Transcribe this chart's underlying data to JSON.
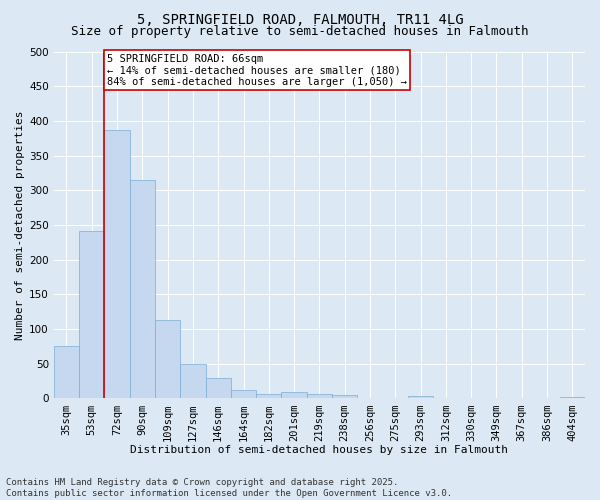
{
  "title_line1": "5, SPRINGFIELD ROAD, FALMOUTH, TR11 4LG",
  "title_line2": "Size of property relative to semi-detached houses in Falmouth",
  "xlabel": "Distribution of semi-detached houses by size in Falmouth",
  "ylabel": "Number of semi-detached properties",
  "categories": [
    "35sqm",
    "53sqm",
    "72sqm",
    "90sqm",
    "109sqm",
    "127sqm",
    "146sqm",
    "164sqm",
    "182sqm",
    "201sqm",
    "219sqm",
    "238sqm",
    "256sqm",
    "275sqm",
    "293sqm",
    "312sqm",
    "330sqm",
    "349sqm",
    "367sqm",
    "386sqm",
    "404sqm"
  ],
  "values": [
    75,
    242,
    387,
    315,
    113,
    50,
    29,
    12,
    7,
    10,
    6,
    5,
    0,
    0,
    3,
    0,
    0,
    1,
    0,
    0,
    2
  ],
  "bar_color": "#c5d8f0",
  "bar_edge_color": "#7aadd4",
  "vline_x_index": 1.5,
  "vline_color": "#cc0000",
  "annotation_box_text": "5 SPRINGFIELD ROAD: 66sqm\n← 14% of semi-detached houses are smaller (180)\n84% of semi-detached houses are larger (1,050) →",
  "annotation_box_color": "#cc0000",
  "annotation_box_fill": "#ffffff",
  "ylim": [
    0,
    500
  ],
  "yticks": [
    0,
    50,
    100,
    150,
    200,
    250,
    300,
    350,
    400,
    450,
    500
  ],
  "background_color": "#dce9f5",
  "plot_background_color": "#dce9f5",
  "footnote": "Contains HM Land Registry data © Crown copyright and database right 2025.\nContains public sector information licensed under the Open Government Licence v3.0.",
  "title_fontsize": 10,
  "subtitle_fontsize": 9,
  "xlabel_fontsize": 8,
  "ylabel_fontsize": 8,
  "tick_fontsize": 7.5,
  "annotation_fontsize": 7.5,
  "footnote_fontsize": 6.5
}
